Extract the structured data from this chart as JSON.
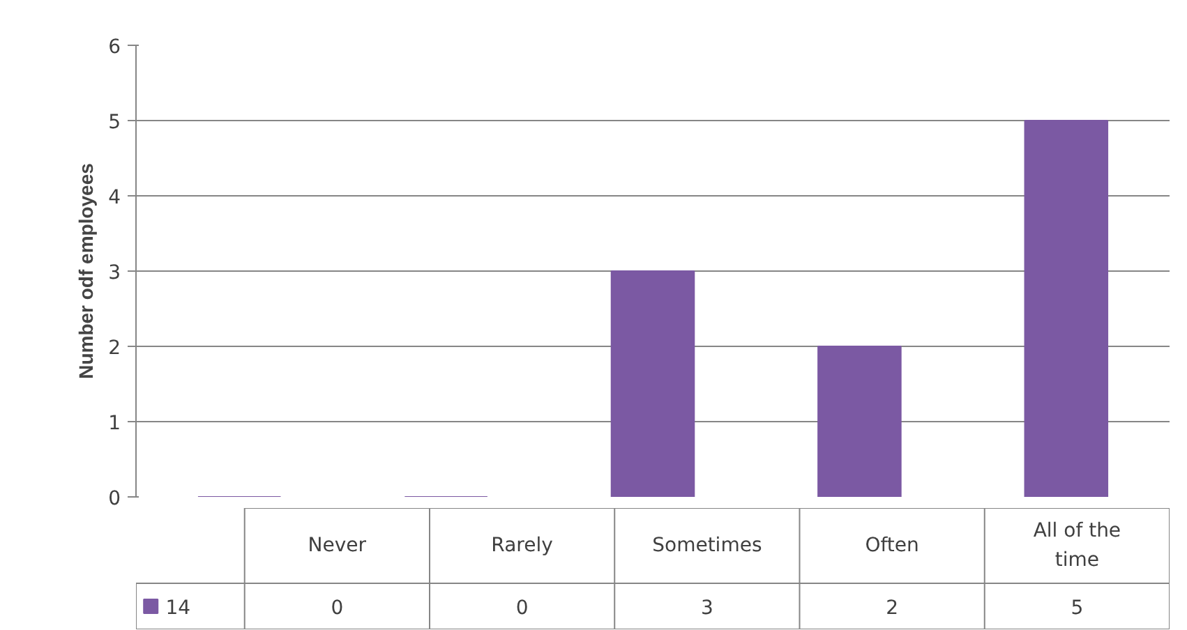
{
  "chart_data": {
    "type": "bar",
    "ylabel": "Number odf employees",
    "categories": [
      "Never",
      "Rarely",
      "Sometimes",
      "Often",
      "All of the time"
    ],
    "series": [
      {
        "name": "14",
        "color": "#7b59a3",
        "values": [
          0,
          0,
          3,
          2,
          5
        ]
      }
    ],
    "ylim": [
      0,
      6
    ],
    "yticks": [
      0,
      1,
      2,
      3,
      4,
      5,
      6
    ],
    "grid": "y",
    "legend": "bottom left",
    "data_labels": true
  }
}
